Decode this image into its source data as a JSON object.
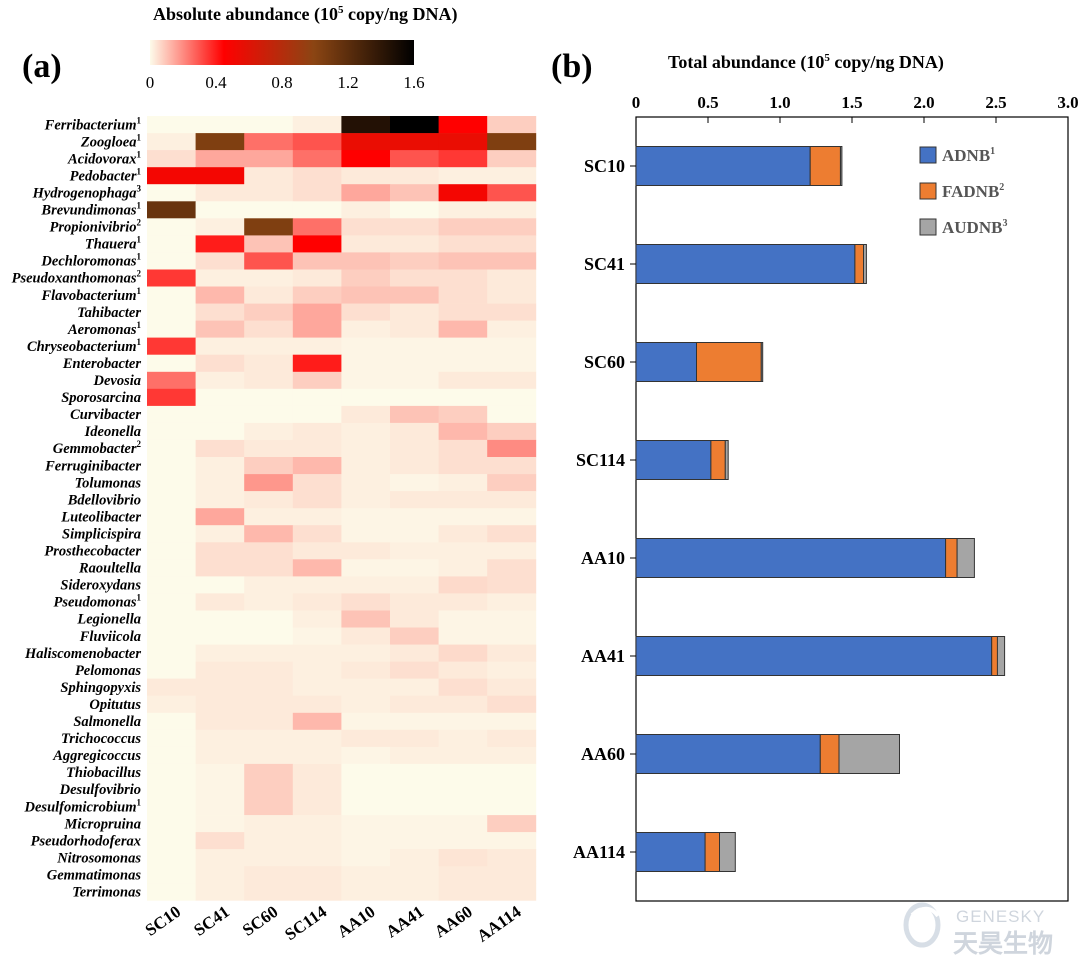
{
  "figure": {
    "panel_a_label": "(a)",
    "panel_b_label": "(b)",
    "watermark": {
      "line1": "GENESKY",
      "line2": "天昊生物"
    }
  },
  "colors": {
    "heat_low": "#fdfbea",
    "heat_mid": "#ff0000",
    "heat_mid2": "#8b4513",
    "heat_high": "#000000",
    "ADNB": "#4472c4",
    "FADNB": "#ed7d31",
    "AUDNB": "#a5a5a5"
  },
  "chart_data": [
    {
      "type": "heatmap",
      "colorbar": {
        "title_prefix": "Absolute abundance (10",
        "title_sup": "5",
        "title_suffix": " copy/ng DNA)",
        "ticks": [
          "0",
          "0.4",
          "0.8",
          "1.2",
          "1.6"
        ],
        "range": [
          0,
          1.6
        ]
      },
      "columns": [
        "SC10",
        "SC41",
        "SC60",
        "SC114",
        "AA10",
        "AA41",
        "AA60",
        "AA114"
      ],
      "rows": [
        {
          "name": "Ferribacterium",
          "sup": "1",
          "values": [
            0,
            0,
            0,
            0.02,
            1.45,
            1.6,
            0.45,
            0.08
          ]
        },
        {
          "name": "Zoogloea",
          "sup": "1",
          "values": [
            0.02,
            1.05,
            0.25,
            0.3,
            0.55,
            0.55,
            0.55,
            1.05
          ]
        },
        {
          "name": "Acidovorax",
          "sup": "1",
          "values": [
            0.05,
            0.15,
            0.15,
            0.25,
            0.45,
            0.3,
            0.35,
            0.08
          ]
        },
        {
          "name": "Pedobacter",
          "sup": "1",
          "values": [
            0.5,
            0.5,
            0.03,
            0.05,
            0.03,
            0.03,
            0.02,
            0.02
          ]
        },
        {
          "name": "Hydrogenophaga",
          "sup": "3",
          "values": [
            0,
            0.03,
            0.03,
            0.05,
            0.15,
            0.1,
            0.5,
            0.3
          ]
        },
        {
          "name": "Brevundimonas",
          "sup": "1",
          "values": [
            1.15,
            0,
            0,
            0,
            0.02,
            0,
            0.02,
            0.02
          ]
        },
        {
          "name": "Propionivibrio",
          "sup": "2",
          "values": [
            0,
            0.02,
            1.05,
            0.25,
            0.05,
            0.05,
            0.08,
            0.08
          ]
        },
        {
          "name": "Thauera",
          "sup": "1",
          "values": [
            0,
            0.4,
            0.1,
            0.45,
            0.03,
            0.03,
            0.05,
            0.05
          ]
        },
        {
          "name": "Dechloromonas",
          "sup": "1",
          "values": [
            0,
            0.05,
            0.3,
            0.1,
            0.1,
            0.08,
            0.1,
            0.1
          ]
        },
        {
          "name": "Pseudoxanthomonas",
          "sup": "2",
          "values": [
            0.35,
            0.02,
            0.02,
            0.03,
            0.08,
            0.05,
            0.05,
            0.03
          ]
        },
        {
          "name": "Flavobacterium",
          "sup": "1",
          "values": [
            0,
            0.12,
            0.03,
            0.08,
            0.1,
            0.1,
            0.05,
            0.03
          ]
        },
        {
          "name": "Tahibacter",
          "sup": "",
          "values": [
            0,
            0.05,
            0.08,
            0.15,
            0.05,
            0.03,
            0.05,
            0.05
          ]
        },
        {
          "name": "Aeromonas",
          "sup": "1",
          "values": [
            0,
            0.1,
            0.05,
            0.15,
            0.02,
            0.03,
            0.12,
            0.02
          ]
        },
        {
          "name": "Chryseobacterium",
          "sup": "1",
          "values": [
            0.35,
            0.02,
            0.02,
            0.02,
            0.01,
            0.01,
            0.01,
            0.01
          ]
        },
        {
          "name": "Enterobacter",
          "sup": "",
          "values": [
            0,
            0.05,
            0.03,
            0.4,
            0.01,
            0.01,
            0.01,
            0.01
          ]
        },
        {
          "name": "Devosia",
          "sup": "",
          "values": [
            0.25,
            0.02,
            0.03,
            0.08,
            0.01,
            0.01,
            0.03,
            0.03
          ]
        },
        {
          "name": "Sporosarcina",
          "sup": "",
          "values": [
            0.35,
            0,
            0,
            0,
            0,
            0,
            0,
            0
          ]
        },
        {
          "name": "Curvibacter",
          "sup": "",
          "values": [
            0,
            0,
            0,
            0,
            0.03,
            0.1,
            0.08,
            0
          ]
        },
        {
          "name": "Ideonella",
          "sup": "",
          "values": [
            0,
            0,
            0.02,
            0.03,
            0.02,
            0.03,
            0.12,
            0.08
          ]
        },
        {
          "name": "Gemmobacter",
          "sup": "2",
          "values": [
            0,
            0.05,
            0.03,
            0.03,
            0.02,
            0.03,
            0.05,
            0.2
          ]
        },
        {
          "name": "Ferruginibacter",
          "sup": "",
          "values": [
            0,
            0.02,
            0.08,
            0.12,
            0.02,
            0.03,
            0.05,
            0.05
          ]
        },
        {
          "name": "Tolumonas",
          "sup": "",
          "values": [
            0,
            0.02,
            0.18,
            0.05,
            0.02,
            0.01,
            0.02,
            0.08
          ]
        },
        {
          "name": "Bdellovibrio",
          "sup": "",
          "values": [
            0,
            0.02,
            0.03,
            0.05,
            0.02,
            0.03,
            0.03,
            0.03
          ]
        },
        {
          "name": "Luteolibacter",
          "sup": "",
          "values": [
            0,
            0.15,
            0.02,
            0.02,
            0.01,
            0.01,
            0.01,
            0.01
          ]
        },
        {
          "name": "Simplicispira",
          "sup": "",
          "values": [
            0,
            0.02,
            0.12,
            0.05,
            0.01,
            0.01,
            0.03,
            0.05
          ]
        },
        {
          "name": "Prosthecobacter",
          "sup": "",
          "values": [
            0,
            0.05,
            0.05,
            0.03,
            0.03,
            0.02,
            0.02,
            0.02
          ]
        },
        {
          "name": "Raoultella",
          "sup": "",
          "values": [
            0,
            0.05,
            0.05,
            0.12,
            0.01,
            0.01,
            0.02,
            0.05
          ]
        },
        {
          "name": "Sideroxydans",
          "sup": "",
          "values": [
            0,
            0,
            0.02,
            0.02,
            0.02,
            0.02,
            0.06,
            0.05
          ]
        },
        {
          "name": "Pseudomonas",
          "sup": "1",
          "values": [
            0,
            0.03,
            0.02,
            0.03,
            0.05,
            0.03,
            0.03,
            0.02
          ]
        },
        {
          "name": "Legionella",
          "sup": "",
          "values": [
            0,
            0,
            0,
            0.02,
            0.1,
            0.03,
            0.01,
            0.01
          ]
        },
        {
          "name": "Fluviicola",
          "sup": "",
          "values": [
            0,
            0,
            0,
            0.01,
            0.03,
            0.08,
            0.01,
            0.01
          ]
        },
        {
          "name": "Haliscomenobacter",
          "sup": "",
          "values": [
            0,
            0.02,
            0.02,
            0.02,
            0.02,
            0.03,
            0.06,
            0.03
          ]
        },
        {
          "name": "Pelomonas",
          "sup": "",
          "values": [
            0,
            0.03,
            0.03,
            0.02,
            0.03,
            0.05,
            0.03,
            0.02
          ]
        },
        {
          "name": "Sphingopyxis",
          "sup": "",
          "values": [
            0.03,
            0.03,
            0.03,
            0.02,
            0.02,
            0.02,
            0.05,
            0.03
          ]
        },
        {
          "name": "Opitutus",
          "sup": "",
          "values": [
            0.02,
            0.03,
            0.03,
            0.03,
            0.02,
            0.03,
            0.03,
            0.05
          ]
        },
        {
          "name": "Salmonella",
          "sup": "",
          "values": [
            0,
            0.03,
            0.03,
            0.12,
            0.01,
            0.01,
            0.01,
            0.01
          ]
        },
        {
          "name": "Trichococcus",
          "sup": "",
          "values": [
            0,
            0.02,
            0.02,
            0.02,
            0.03,
            0.03,
            0.02,
            0.03
          ]
        },
        {
          "name": "Aggregicoccus",
          "sup": "",
          "values": [
            0,
            0.02,
            0.02,
            0.02,
            0.01,
            0.02,
            0.02,
            0.02
          ]
        },
        {
          "name": "Thiobacillus",
          "sup": "",
          "values": [
            0,
            0.01,
            0.08,
            0.03,
            0,
            0,
            0,
            0
          ]
        },
        {
          "name": "Desulfovibrio",
          "sup": "",
          "values": [
            0,
            0.01,
            0.08,
            0.03,
            0,
            0,
            0,
            0
          ]
        },
        {
          "name": "Desulfomicrobium",
          "sup": "1",
          "values": [
            0,
            0.01,
            0.08,
            0.03,
            0,
            0,
            0,
            0
          ]
        },
        {
          "name": "Micropruina",
          "sup": "",
          "values": [
            0,
            0.01,
            0.02,
            0.02,
            0.01,
            0.01,
            0.01,
            0.08
          ]
        },
        {
          "name": "Pseudorhodoferax",
          "sup": "",
          "values": [
            0,
            0.05,
            0.02,
            0.02,
            0.01,
            0.01,
            0.01,
            0.01
          ]
        },
        {
          "name": "Nitrosomonas",
          "sup": "",
          "values": [
            0,
            0.02,
            0.02,
            0.02,
            0.01,
            0.02,
            0.04,
            0.03
          ]
        },
        {
          "name": "Gemmatimonas",
          "sup": "",
          "values": [
            0,
            0.02,
            0.03,
            0.03,
            0.02,
            0.02,
            0.03,
            0.03
          ]
        },
        {
          "name": "Terrimonas",
          "sup": "",
          "values": [
            0,
            0.02,
            0.03,
            0.03,
            0.02,
            0.02,
            0.03,
            0.03
          ]
        }
      ]
    },
    {
      "type": "bar",
      "orientation": "horizontal",
      "stacked": true,
      "title_prefix": "Total abundance (10",
      "title_sup": "5",
      "title_suffix": " copy/ng DNA)",
      "xlim": [
        0,
        3.0
      ],
      "xticks": [
        "0",
        "0.5",
        "1.0",
        "1.5",
        "2.0",
        "2.5",
        "3.0"
      ],
      "categories": [
        "SC10",
        "SC41",
        "SC60",
        "SC114",
        "AA10",
        "AA41",
        "AA60",
        "AA114"
      ],
      "series": [
        {
          "name": "ADNB",
          "sup": "1",
          "values": [
            1.21,
            1.52,
            0.42,
            0.52,
            2.15,
            2.47,
            1.28,
            0.48
          ]
        },
        {
          "name": "FADNB",
          "sup": "2",
          "values": [
            0.21,
            0.06,
            0.45,
            0.1,
            0.08,
            0.04,
            0.13,
            0.1
          ]
        },
        {
          "name": "AUDNB",
          "sup": "3",
          "values": [
            0.01,
            0.02,
            0.01,
            0.02,
            0.12,
            0.05,
            0.42,
            0.11
          ]
        }
      ],
      "legend": "top-right"
    }
  ]
}
